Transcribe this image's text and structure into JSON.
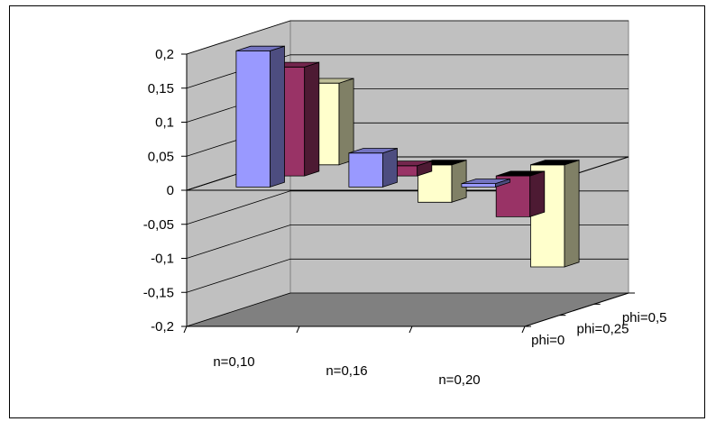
{
  "chart_data": {
    "type": "bar",
    "variant": "3d-column",
    "title": "",
    "xlabel": "",
    "ylabel": "",
    "categories": [
      "n=0,10",
      "n=0,16",
      "n=0,20"
    ],
    "depth_categories": [
      "phi=0",
      "phi=0,25",
      "phi=0,5"
    ],
    "series": [
      {
        "values": [
          0.2,
          0.05,
          0.005
        ],
        "color": "#9999FF"
      },
      {
        "values": [
          0.16,
          0.015,
          -0.06
        ],
        "color": "#993366"
      },
      {
        "values": [
          0.12,
          -0.055,
          -0.15
        ],
        "color": "#FFFFCC"
      }
    ],
    "ylim": [
      -0.2,
      0.2
    ],
    "y_ticks": [
      "-0,2",
      "-0,15",
      "-0,1",
      "-0,05",
      "0",
      "0,05",
      "0,1",
      "0,15",
      "0,2"
    ],
    "grid": true,
    "walls_color": "#C0C0C0",
    "floor_color": "#808080"
  }
}
